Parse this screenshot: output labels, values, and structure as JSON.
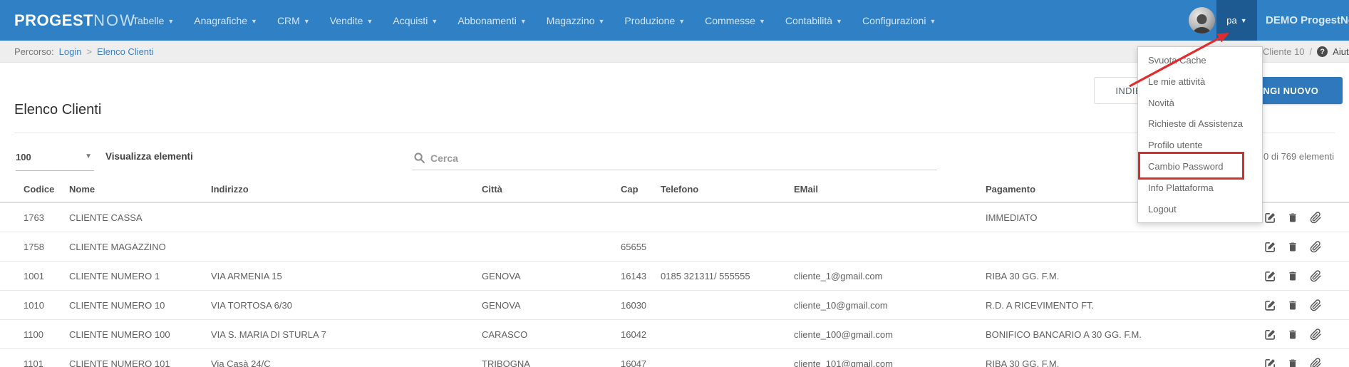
{
  "navbar": {
    "brand_bold": "PROGEST",
    "brand_light": "NOW",
    "items": [
      "Tabelle",
      "Anagrafiche",
      "CRM",
      "Vendite",
      "Acquisti",
      "Abbonamenti",
      "Magazzino",
      "Produzione",
      "Commesse",
      "Contabilità",
      "Configurazioni"
    ],
    "user_initials": "pa",
    "tenant": "DEMO ProgestNow"
  },
  "breadcrumb": {
    "prefix": "Percorso:",
    "link1": "Login",
    "separator": ">",
    "link2": "Elenco Clienti",
    "right_context": "Cliente 10",
    "right_separator": "/",
    "help_icon_glyph": "?",
    "help_label": "Aiuto"
  },
  "page": {
    "title": "Elenco Clienti",
    "back_button": "INDIETRO",
    "add_button": "AGGIUNGI NUOVO"
  },
  "toolbar": {
    "page_size_value": "100",
    "page_size_label": "Visualizza elementi",
    "search_placeholder": "Cerca",
    "info_text": "0 di 769 elementi"
  },
  "user_menu": {
    "items": [
      "Svuota Cache",
      "Le mie attività",
      "Novità",
      "Richieste di Assistenza",
      "Profilo utente",
      "Cambio Password",
      "Info Plattaforma",
      "Logout"
    ],
    "highlighted_item": "Cambio Password",
    "highlight_color": "#d32f2f"
  },
  "table": {
    "columns": [
      "Codice",
      "Nome",
      "Indirizzo",
      "Città",
      "Cap",
      "Telefono",
      "EMail",
      "Pagamento"
    ],
    "rows": [
      [
        "1763",
        "CLIENTE CASSA",
        "",
        "",
        "",
        "",
        "",
        "IMMEDIATO"
      ],
      [
        "1758",
        "CLIENTE MAGAZZINO",
        "",
        "",
        "65655",
        "",
        "",
        ""
      ],
      [
        "1001",
        "CLIENTE NUMERO 1",
        "VIA ARMENIA 15",
        "GENOVA",
        "16143",
        "0185 321311/ 555555",
        "cliente_1@gmail.com",
        "RIBA 30 GG. F.M."
      ],
      [
        "1010",
        "CLIENTE NUMERO 10",
        "VIA TORTOSA 6/30",
        "GENOVA",
        "16030",
        "",
        "cliente_10@gmail.com",
        "R.D. A RICEVIMENTO FT."
      ],
      [
        "1100",
        "CLIENTE NUMERO 100",
        "VIA S. MARIA DI STURLA 7",
        "CARASCO",
        "16042",
        "",
        "cliente_100@gmail.com",
        "BONIFICO BANCARIO A 30 GG. F.M."
      ],
      [
        "1101",
        "CLIENTE NUMERO 101",
        "Via Casà 24/C",
        "TRIBOGNA",
        "16047",
        "",
        "cliente_101@gmail.com",
        "RIBA 30 GG. F.M."
      ]
    ]
  },
  "colors": {
    "navbar_blue": "#3080c6",
    "user_box_blue": "#1d5a92",
    "add_button_blue": "#2e78bb",
    "link_blue": "#3d7ec2",
    "annotation_red": "#e02c2c"
  }
}
